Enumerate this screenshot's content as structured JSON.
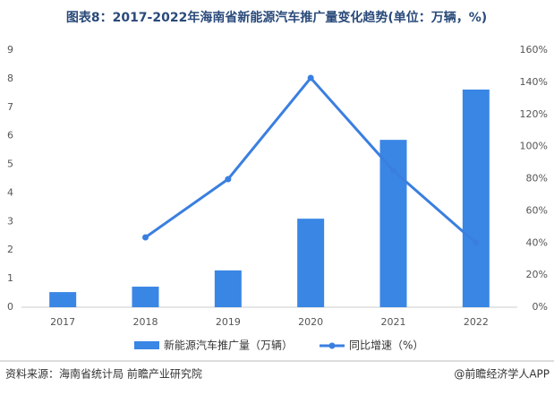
{
  "chart_data": {
    "type": "bar_line",
    "title": "图表8：2017-2022年海南省新能源汽车推广量变化趋势(单位：万辆，%)",
    "categories": [
      "2017",
      "2018",
      "2019",
      "2020",
      "2021",
      "2022"
    ],
    "series": [
      {
        "name": "新能源汽车推广量（万辆）",
        "type": "bar",
        "color": "#3a86e5",
        "values": [
          0.53,
          0.72,
          1.29,
          3.1,
          5.86,
          7.62
        ]
      },
      {
        "name": "同比增速（%）",
        "type": "line",
        "axis": "y2",
        "color": "#3a7fe0",
        "values": [
          null,
          43.5,
          79.7,
          142.7,
          85,
          40
        ]
      }
    ],
    "ylim": [
      0,
      9
    ],
    "yticks": [
      0,
      1,
      2,
      3,
      4,
      5,
      6,
      7,
      8,
      9
    ],
    "y2lim": [
      0,
      160
    ],
    "y2ticks": [
      {
        "value": 0,
        "label": "0%"
      },
      {
        "value": 20,
        "label": "20%"
      },
      {
        "value": 40,
        "label": "40%"
      },
      {
        "value": 60,
        "label": "60%"
      },
      {
        "value": 80,
        "label": "80%"
      },
      {
        "value": 100,
        "label": "100%"
      },
      {
        "value": 120,
        "label": "120%"
      },
      {
        "value": 140,
        "label": "140%"
      },
      {
        "value": 160,
        "label": "160%"
      }
    ],
    "grid": false,
    "source": "资料来源：海南省统计局 前瞻产业研究院",
    "credit": "@前瞻经济学人APP"
  }
}
